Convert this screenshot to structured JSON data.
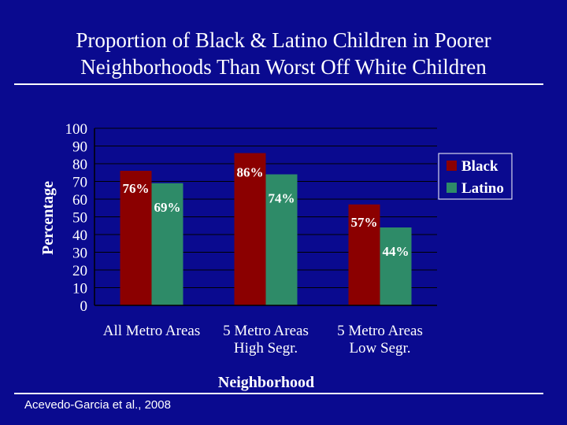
{
  "slide": {
    "title_line1": "Proportion of Black & Latino Children in Poorer",
    "title_line2": "Neighborhoods Than Worst Off White Children",
    "citation": "Acevedo-Garcia et al., 2008"
  },
  "chart_data": {
    "type": "bar",
    "title": "",
    "xlabel": "Neighborhood",
    "ylabel": "Percentage",
    "ylim": [
      0,
      100
    ],
    "yticks": [
      0,
      10,
      20,
      30,
      40,
      50,
      60,
      70,
      80,
      90,
      100
    ],
    "grid": true,
    "legend_position": "right",
    "categories": [
      [
        "All Metro Areas"
      ],
      [
        "5 Metro Areas",
        "High Segr."
      ],
      [
        "5 Metro Areas",
        "Low Segr."
      ]
    ],
    "series": [
      {
        "name": "Black",
        "color": "#8b0000",
        "values": [
          76,
          86,
          57
        ],
        "labels": [
          "76%",
          "86%",
          "57%"
        ]
      },
      {
        "name": "Latino",
        "color": "#2e8b68",
        "values": [
          69,
          74,
          44
        ],
        "labels": [
          "69%",
          "74%",
          "44%"
        ]
      }
    ]
  }
}
